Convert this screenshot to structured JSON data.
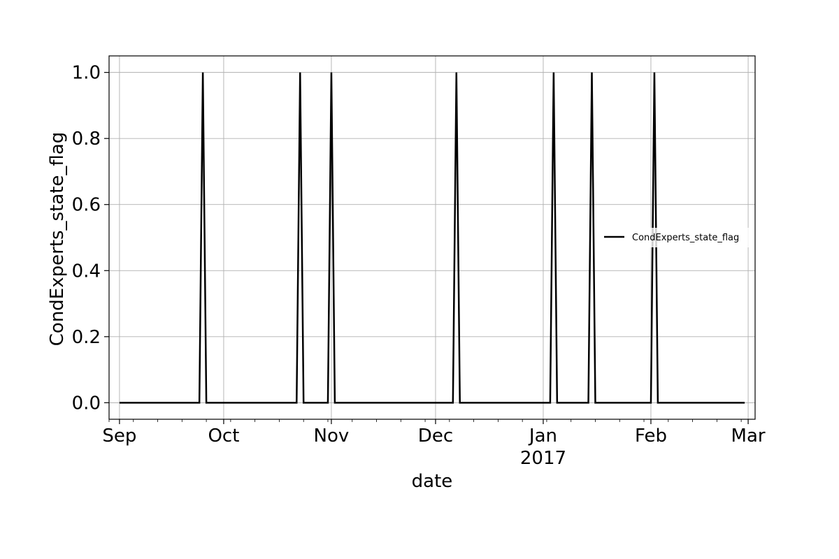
{
  "chart_data": {
    "type": "line",
    "title": "",
    "xlabel": "date",
    "ylabel": "CondExperts_state_flag",
    "x_axis": {
      "type": "date",
      "range": [
        "2016-08-29",
        "2017-03-03"
      ],
      "ticks": [
        {
          "date": "2016-09-01",
          "label": "Sep"
        },
        {
          "date": "2016-10-01",
          "label": "Oct"
        },
        {
          "date": "2016-11-01",
          "label": "Nov"
        },
        {
          "date": "2016-12-01",
          "label": "Dec"
        },
        {
          "date": "2017-01-01",
          "label": "Jan",
          "sublabel": "2017"
        },
        {
          "date": "2017-02-01",
          "label": "Feb"
        },
        {
          "date": "2017-03-01",
          "label": "Mar"
        }
      ]
    },
    "y_axis": {
      "range": [
        -0.05,
        1.05
      ],
      "ticks": [
        {
          "value": 0.0,
          "label": "0.0"
        },
        {
          "value": 0.2,
          "label": "0.2"
        },
        {
          "value": 0.4,
          "label": "0.4"
        },
        {
          "value": 0.6,
          "label": "0.6"
        },
        {
          "value": 0.8,
          "label": "0.8"
        },
        {
          "value": 1.0,
          "label": "1.0"
        }
      ]
    },
    "grid": true,
    "legend": {
      "placement": "center-right"
    },
    "series": [
      {
        "name": "CondExperts_state_flag",
        "color": "#000000",
        "points": [
          [
            "2016-09-01",
            0
          ],
          [
            "2016-09-24",
            0
          ],
          [
            "2016-09-25",
            1
          ],
          [
            "2016-09-26",
            0
          ],
          [
            "2016-10-22",
            0
          ],
          [
            "2016-10-23",
            1
          ],
          [
            "2016-10-24",
            0
          ],
          [
            "2016-10-31",
            0
          ],
          [
            "2016-11-01",
            1
          ],
          [
            "2016-11-02",
            0
          ],
          [
            "2016-12-06",
            0
          ],
          [
            "2016-12-07",
            1
          ],
          [
            "2016-12-08",
            0
          ],
          [
            "2017-01-03",
            0
          ],
          [
            "2017-01-04",
            1
          ],
          [
            "2017-01-05",
            0
          ],
          [
            "2017-01-14",
            0
          ],
          [
            "2017-01-15",
            1
          ],
          [
            "2017-01-16",
            0
          ],
          [
            "2017-02-01",
            0
          ],
          [
            "2017-02-02",
            1
          ],
          [
            "2017-02-03",
            0
          ],
          [
            "2017-02-28",
            0
          ]
        ]
      }
    ]
  }
}
